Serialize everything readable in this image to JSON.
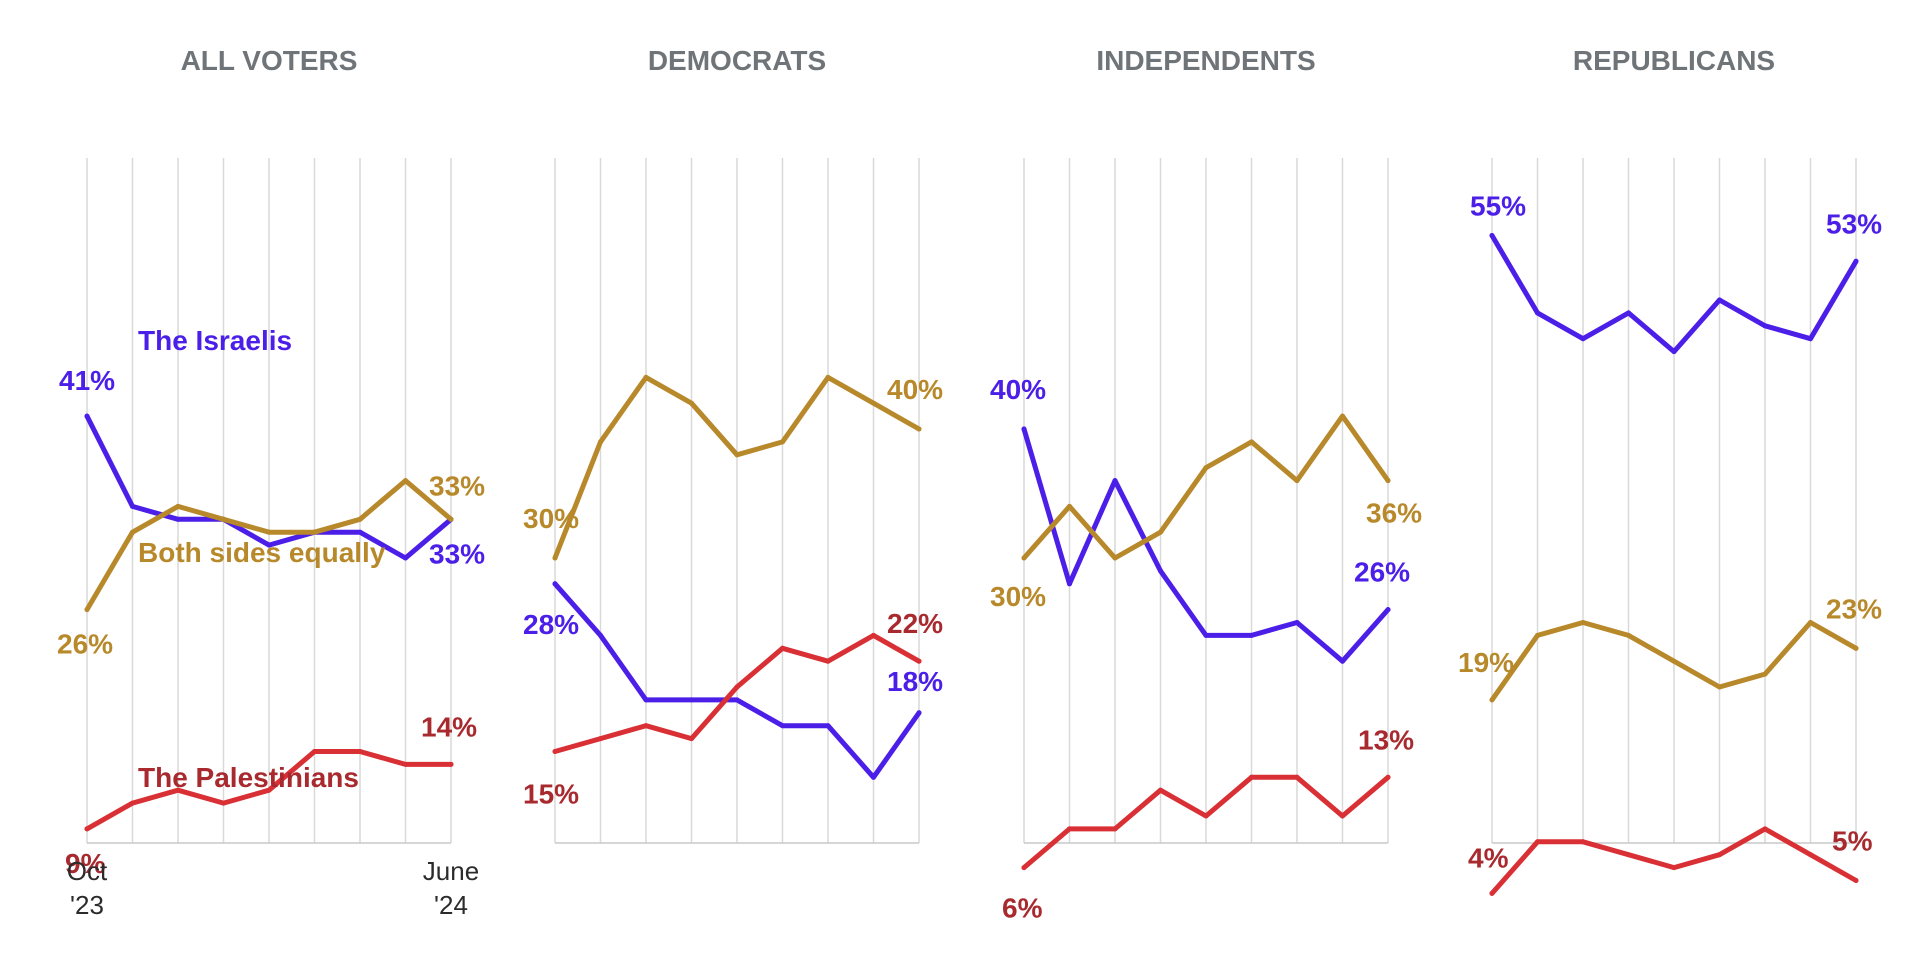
{
  "chart_data": [
    {
      "type": "line",
      "title": "ALL VOTERS",
      "x_tick_labels": [
        {
          "index": 0,
          "lines": [
            "Oct",
            "'23"
          ]
        },
        {
          "index": 8,
          "lines": [
            "June",
            "'24"
          ]
        }
      ],
      "ylim": [
        0,
        60
      ],
      "series": [
        {
          "name": "The Israelis",
          "color": "#4b1fe8",
          "values": [
            41,
            34,
            33,
            33,
            31,
            32,
            32,
            30,
            33
          ]
        },
        {
          "name": "Both sides equally",
          "color": "#b8892b",
          "values": [
            26,
            32,
            34,
            33,
            32,
            32,
            33,
            36,
            33
          ]
        },
        {
          "name": "The Palestinians",
          "color": "#d93035",
          "values": [
            9,
            11,
            12,
            11,
            12,
            15,
            15,
            14,
            14
          ]
        }
      ],
      "annotations": [
        {
          "series": 0,
          "end": "start",
          "text": "41%"
        },
        {
          "series": 0,
          "end": "end",
          "text": "33%"
        },
        {
          "series": 1,
          "end": "start",
          "text": "26%"
        },
        {
          "series": 1,
          "end": "end",
          "text": "33%"
        },
        {
          "series": 2,
          "end": "start",
          "text": "9%"
        },
        {
          "series": 2,
          "end": "end",
          "text": "14%"
        }
      ]
    },
    {
      "type": "line",
      "title": "DEMOCRATS",
      "ylim": [
        0,
        60
      ],
      "series": [
        {
          "name": "The Israelis",
          "color": "#4b1fe8",
          "values": [
            28,
            24,
            19,
            19,
            19,
            17,
            17,
            13,
            18
          ]
        },
        {
          "name": "Both sides equally",
          "color": "#b8892b",
          "values": [
            30,
            39,
            44,
            42,
            38,
            39,
            44,
            42,
            40
          ]
        },
        {
          "name": "The Palestinians",
          "color": "#d93035",
          "values": [
            15,
            16,
            17,
            16,
            20,
            23,
            22,
            24,
            22
          ]
        }
      ],
      "annotations": [
        {
          "series": 0,
          "end": "start",
          "text": "28%"
        },
        {
          "series": 0,
          "end": "end",
          "text": "18%"
        },
        {
          "series": 1,
          "end": "start",
          "text": "30%"
        },
        {
          "series": 1,
          "end": "end",
          "text": "40%"
        },
        {
          "series": 2,
          "end": "start",
          "text": "15%"
        },
        {
          "series": 2,
          "end": "end",
          "text": "22%"
        }
      ]
    },
    {
      "type": "line",
      "title": "INDEPENDENTS",
      "ylim": [
        0,
        60
      ],
      "series": [
        {
          "name": "The Israelis",
          "color": "#4b1fe8",
          "values": [
            40,
            28,
            36,
            29,
            24,
            24,
            25,
            22,
            26
          ]
        },
        {
          "name": "Both sides equally",
          "color": "#b8892b",
          "values": [
            30,
            34,
            30,
            32,
            37,
            39,
            36,
            41,
            36
          ]
        },
        {
          "name": "The Palestinians",
          "color": "#d93035",
          "values": [
            6,
            9,
            9,
            12,
            10,
            13,
            13,
            10,
            13
          ]
        }
      ],
      "annotations": [
        {
          "series": 0,
          "end": "start",
          "text": "40%"
        },
        {
          "series": 0,
          "end": "end",
          "text": "26%"
        },
        {
          "series": 1,
          "end": "start",
          "text": "30%"
        },
        {
          "series": 1,
          "end": "end",
          "text": "36%"
        },
        {
          "series": 2,
          "end": "start",
          "text": "6%"
        },
        {
          "series": 2,
          "end": "end",
          "text": "13%"
        }
      ]
    },
    {
      "type": "line",
      "title": "REPUBLICANS",
      "ylim": [
        0,
        60
      ],
      "series": [
        {
          "name": "The Israelis",
          "color": "#4b1fe8",
          "values": [
            55,
            49,
            47,
            49,
            46,
            50,
            48,
            47,
            53
          ]
        },
        {
          "name": "Both sides equally",
          "color": "#b8892b",
          "values": [
            19,
            24,
            25,
            24,
            22,
            20,
            21,
            25,
            23
          ]
        },
        {
          "name": "The Palestinians",
          "color": "#d93035",
          "values": [
            4,
            8,
            8,
            7,
            6,
            7,
            9,
            7,
            5
          ]
        }
      ],
      "annotations": [
        {
          "series": 0,
          "end": "start",
          "text": "55%"
        },
        {
          "series": 0,
          "end": "end",
          "text": "53%"
        },
        {
          "series": 1,
          "end": "start",
          "text": "19%"
        },
        {
          "series": 1,
          "end": "end",
          "text": "23%"
        },
        {
          "series": 2,
          "end": "start",
          "text": "4%"
        },
        {
          "series": 2,
          "end": "end",
          "text": "5%"
        }
      ]
    }
  ]
}
